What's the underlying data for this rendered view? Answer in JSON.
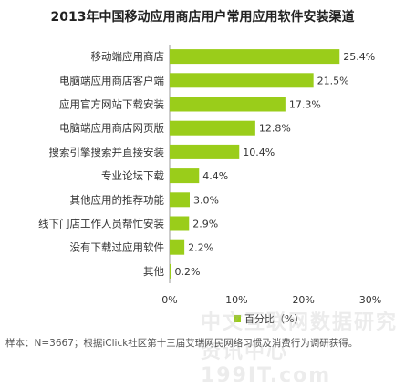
{
  "title": "2013年中国移动应用商店用户常用应用软件安装渠道",
  "source_note": "样本：N=3667；根据iClick社区第十三届艾瑞网民网络习惯及消费行为调研获得。",
  "watermark": "中文互联网数据研究资讯中心 199IT.com",
  "chart_data": {
    "type": "bar",
    "orientation": "horizontal",
    "categories": [
      "移动端应用商店",
      "电脑端应用商店客户端",
      "应用官方网站下载安装",
      "电脑端应用商店网页版",
      "搜索引擎搜索并直接安装",
      "专业论坛下载",
      "其他应用的推荐功能",
      "线下门店工作人员帮忙安装",
      "没有下载过应用软件",
      "其他"
    ],
    "series": [
      {
        "name": "百分比（%）",
        "values": [
          25.4,
          21.5,
          17.3,
          12.8,
          10.4,
          4.4,
          3.0,
          2.9,
          2.2,
          0.2
        ],
        "color": "#9ACD1A"
      }
    ],
    "value_labels": [
      "25.4%",
      "21.5%",
      "17.3%",
      "12.8%",
      "10.4%",
      "4.4%",
      "3.0%",
      "2.9%",
      "2.2%",
      "0.2%"
    ],
    "xlim": [
      0,
      30
    ],
    "xticks": [
      0,
      10,
      20,
      30
    ],
    "xtick_labels": [
      "0%",
      "10%",
      "20%",
      "30%"
    ],
    "grid": false,
    "legend_position": "bottom"
  }
}
